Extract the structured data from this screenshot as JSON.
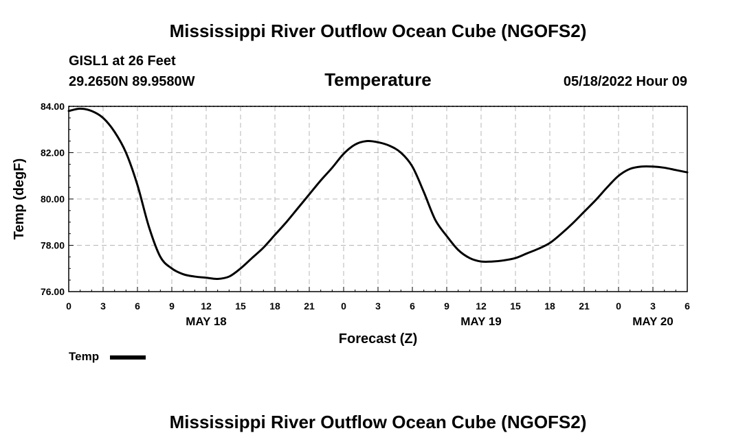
{
  "page": {
    "title": "Mississippi River Outflow Ocean Cube (NGOFS2)",
    "station": "GISL1 at 26 Feet",
    "coords": "29.2650N  89.9580W",
    "timestamp": "05/18/2022 Hour 09",
    "footer_title": "Mississippi River Outflow Ocean Cube (NGOFS2)"
  },
  "chart_data": {
    "type": "line",
    "title": "Temperature",
    "xlabel": "Forecast (Z)",
    "ylabel": "Temp (degF)",
    "xlim": [
      0,
      54
    ],
    "ylim": [
      76,
      84
    ],
    "grid": true,
    "yticks": [
      {
        "value": 76,
        "label": "76.00"
      },
      {
        "value": 78,
        "label": "78.00"
      },
      {
        "value": 80,
        "label": "80.00"
      },
      {
        "value": 82,
        "label": "82.00"
      },
      {
        "value": 84,
        "label": "84.00"
      }
    ],
    "xticks": [
      {
        "value": 0,
        "label": "0"
      },
      {
        "value": 3,
        "label": "3"
      },
      {
        "value": 6,
        "label": "6"
      },
      {
        "value": 9,
        "label": "9"
      },
      {
        "value": 12,
        "label": "12"
      },
      {
        "value": 15,
        "label": "15"
      },
      {
        "value": 18,
        "label": "18"
      },
      {
        "value": 21,
        "label": "21"
      },
      {
        "value": 24,
        "label": "0"
      },
      {
        "value": 27,
        "label": "3"
      },
      {
        "value": 30,
        "label": "6"
      },
      {
        "value": 33,
        "label": "9"
      },
      {
        "value": 36,
        "label": "12"
      },
      {
        "value": 39,
        "label": "15"
      },
      {
        "value": 42,
        "label": "18"
      },
      {
        "value": 45,
        "label": "21"
      },
      {
        "value": 48,
        "label": "0"
      },
      {
        "value": 51,
        "label": "3"
      },
      {
        "value": 54,
        "label": "6"
      }
    ],
    "day_labels": [
      {
        "value": 12,
        "label": "MAY 18"
      },
      {
        "value": 36,
        "label": "MAY 19"
      },
      {
        "value": 51,
        "label": "MAY 20"
      }
    ],
    "legend": {
      "position": "bottom-left",
      "entries": [
        {
          "name": "Temp"
        }
      ]
    },
    "series": [
      {
        "name": "Temp",
        "color": "#000000",
        "x": [
          0,
          1,
          2,
          3,
          4,
          5,
          6,
          7,
          8,
          9,
          10,
          11,
          12,
          13,
          14,
          15,
          16,
          17,
          18,
          19,
          20,
          21,
          22,
          23,
          24,
          25,
          26,
          27,
          28,
          29,
          30,
          31,
          32,
          33,
          34,
          35,
          36,
          37,
          38,
          39,
          40,
          41,
          42,
          43,
          44,
          45,
          46,
          47,
          48,
          49,
          50,
          51,
          52,
          53,
          54
        ],
        "values": [
          83.8,
          83.9,
          83.8,
          83.5,
          82.9,
          82.0,
          80.6,
          78.8,
          77.5,
          77.0,
          76.75,
          76.65,
          76.6,
          76.55,
          76.65,
          77.0,
          77.45,
          77.9,
          78.45,
          79.0,
          79.6,
          80.2,
          80.8,
          81.35,
          81.95,
          82.35,
          82.5,
          82.45,
          82.3,
          82.0,
          81.4,
          80.3,
          79.1,
          78.4,
          77.8,
          77.45,
          77.3,
          77.3,
          77.35,
          77.45,
          77.65,
          77.85,
          78.1,
          78.5,
          78.95,
          79.45,
          79.95,
          80.5,
          81.0,
          81.3,
          81.4,
          81.4,
          81.35,
          81.25,
          81.15
        ]
      }
    ]
  }
}
